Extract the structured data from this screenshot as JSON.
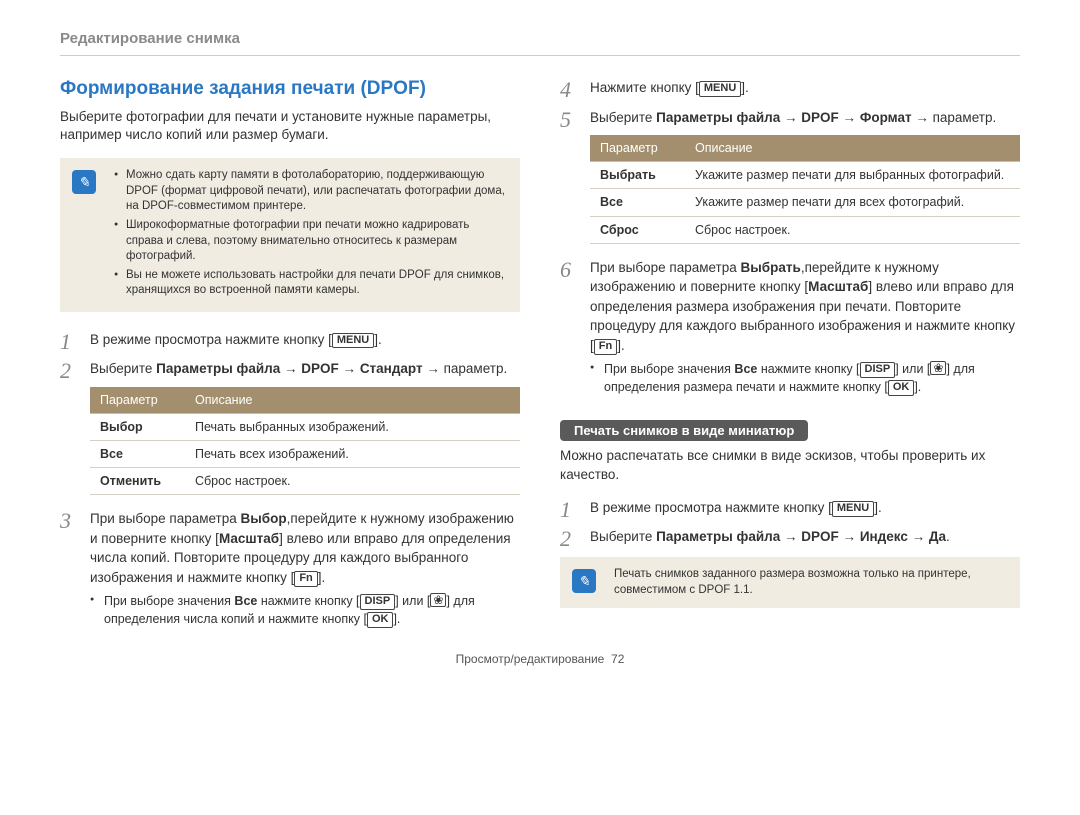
{
  "breadcrumb": "Редактирование снимка",
  "section_title": "Формирование задания печати (DPOF)",
  "intro": "Выберите фотографии для печати и установите нужные параметры, например число копий или размер бумаги.",
  "note1": {
    "items": [
      "Можно сдать карту памяти в фотолабораторию, поддерживающую DPOF (формат цифровой печати), или распечатать фотографии дома, на DPOF-совместимом принтере.",
      "Широкоформатные фотографии при печати можно кадрировать справа и слева, поэтому внимательно относитесь к размерам фотографий.",
      "Вы не можете использовать настройки для печати DPOF для снимков, хранящихся во встроенной памяти камеры."
    ]
  },
  "btn_menu": "MENU",
  "btn_fn": "Fn",
  "btn_disp": "DISP",
  "btn_ok": "OK",
  "left_steps": {
    "s1_a": "В режиме просмотра нажмите кнопку [",
    "s1_b": "].",
    "s2_a": "Выберите ",
    "s2_b": "Параметры файла",
    "s2_c": " → ",
    "s2_d": "DPOF",
    "s2_e": " → ",
    "s2_f": "Стандарт",
    "s2_g": " → параметр.",
    "s3_a": "При выборе параметра ",
    "s3_b": "Выбор",
    "s3_c": ",перейдите к нужному изображению и поверните кнопку [",
    "s3_d": "Масштаб",
    "s3_e": "] влево или вправо для определения числа копий. Повторите процедуру для каждого выбранного изображения и нажмите кнопку [",
    "s3_f": "].",
    "s3_sub_a": "При выборе значения ",
    "s3_sub_b": "Все",
    "s3_sub_c": " нажмите кнопку [",
    "s3_sub_d": "] или [",
    "s3_sub_e": "] для определения числа копий и нажмите кнопку [",
    "s3_sub_f": "]."
  },
  "table1": {
    "h1": "Параметр",
    "h2": "Описание",
    "r1c1": "Выбор",
    "r1c2": "Печать выбранных изображений.",
    "r2c1": "Все",
    "r2c2": "Печать всех изображений.",
    "r3c1": "Отменить",
    "r3c2": "Сброс настроек."
  },
  "right_steps1": {
    "s4_a": "Нажмите кнопку [",
    "s4_b": "].",
    "s5_a": "Выберите ",
    "s5_b": "Параметры файла",
    "s5_c": " → ",
    "s5_d": "DPOF",
    "s5_e": " → ",
    "s5_f": "Формат",
    "s5_g": " → параметр.",
    "s6_a": "При выборе параметра ",
    "s6_b": "Выбрать",
    "s6_c": ",перейдите к нужному изображению и поверните кнопку [",
    "s6_d": "Масштаб",
    "s6_e": "] влево или вправо для определения размера изображения при печати. Повторите процедуру для каждого выбранного изображения и нажмите кнопку [",
    "s6_f": "].",
    "s6_sub_a": "При выборе значения ",
    "s6_sub_b": "Все",
    "s6_sub_c": " нажмите кнопку [",
    "s6_sub_d": "] или [",
    "s6_sub_e": "] для определения размера печати и нажмите кнопку [",
    "s6_sub_f": "]."
  },
  "table2": {
    "h1": "Параметр",
    "h2": "Описание",
    "r1c1": "Выбрать",
    "r1c2": "Укажите размер печати для выбранных фотографий.",
    "r2c1": "Все",
    "r2c2": "Укажите размер печати для всех фотографий.",
    "r3c1": "Сброс",
    "r3c2": "Сброс настроек."
  },
  "subheading": "Печать снимков в виде миниатюр",
  "thumb_intro": "Можно распечатать все снимки в виде эскизов, чтобы проверить их качество.",
  "right_steps2": {
    "s1_a": "В режиме просмотра нажмите кнопку [",
    "s1_b": "].",
    "s2_a": "Выберите ",
    "s2_b": "Параметры файла",
    "s2_c": " → ",
    "s2_d": "DPOF",
    "s2_e": " → ",
    "s2_f": "Индекс",
    "s2_g": " → ",
    "s2_h": "Да",
    "s2_i": "."
  },
  "note2": "Печать снимков заданного размера возможна только на принтере, совместимом с DPOF 1.1.",
  "footer_a": "Просмотр/редактирование",
  "footer_b": "72"
}
